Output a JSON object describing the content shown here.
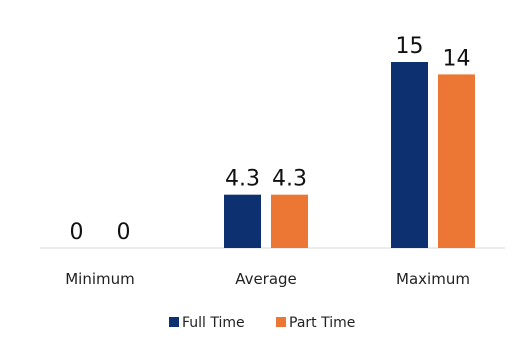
{
  "chart_data": {
    "type": "bar",
    "categories": [
      "Minimum",
      "Average",
      "Maximum"
    ],
    "series": [
      {
        "name": "Full Time",
        "values": [
          0,
          4.3,
          15
        ],
        "labels": [
          "0",
          "4.3",
          "15"
        ],
        "color": "#0d3070"
      },
      {
        "name": "Part Time",
        "values": [
          0,
          4.3,
          14
        ],
        "labels": [
          "0",
          "4.3",
          "14"
        ],
        "color": "#ec7735"
      }
    ],
    "ylim": [
      0,
      15
    ],
    "grid": false,
    "legend": "bottom"
  }
}
